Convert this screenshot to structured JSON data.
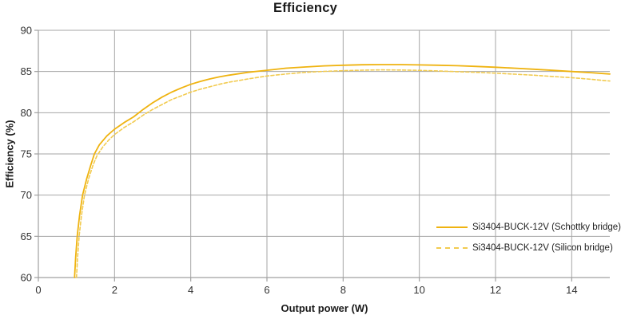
{
  "chart_data": {
    "type": "line",
    "title": "Efficiency",
    "xlabel": "Output power (W)",
    "ylabel": "Efficiency (%)",
    "xlim": [
      0,
      15
    ],
    "ylim": [
      60,
      90
    ],
    "xticks": [
      0,
      2,
      4,
      6,
      8,
      10,
      12,
      14
    ],
    "yticks": [
      60,
      65,
      70,
      75,
      80,
      85,
      90
    ],
    "grid": true,
    "legend_position": "inside-bottom-right",
    "colors": {
      "gridline": "#a6a6a6",
      "axis": "#a0a0a0",
      "tick_text": "#333333",
      "title_text": "#1a1a1a",
      "series_schottky": "#efb310",
      "series_silicon": "#f2cb50"
    },
    "series": [
      {
        "name": "Si3404-BUCK-12V (Schottky bridge)",
        "style": "solid",
        "color": "#efb310",
        "points": [
          [
            0.95,
            60
          ],
          [
            0.98,
            62.5
          ],
          [
            1.02,
            65
          ],
          [
            1.08,
            67.5
          ],
          [
            1.16,
            70
          ],
          [
            1.27,
            72
          ],
          [
            1.38,
            73.7
          ],
          [
            1.47,
            75
          ],
          [
            1.6,
            76.1
          ],
          [
            1.8,
            77.2
          ],
          [
            2.0,
            78.0
          ],
          [
            2.25,
            78.8
          ],
          [
            2.5,
            79.5
          ],
          [
            2.75,
            80.4
          ],
          [
            3.0,
            81.2
          ],
          [
            3.25,
            81.9
          ],
          [
            3.5,
            82.5
          ],
          [
            3.75,
            83.0
          ],
          [
            4.0,
            83.45
          ],
          [
            4.25,
            83.8
          ],
          [
            4.5,
            84.1
          ],
          [
            4.75,
            84.35
          ],
          [
            5.0,
            84.55
          ],
          [
            5.5,
            84.9
          ],
          [
            6.0,
            85.15
          ],
          [
            6.5,
            85.4
          ],
          [
            7.0,
            85.55
          ],
          [
            7.5,
            85.68
          ],
          [
            8.0,
            85.76
          ],
          [
            8.5,
            85.82
          ],
          [
            9.0,
            85.84
          ],
          [
            9.5,
            85.84
          ],
          [
            10.0,
            85.8
          ],
          [
            10.5,
            85.76
          ],
          [
            11.0,
            85.7
          ],
          [
            11.5,
            85.62
          ],
          [
            12.0,
            85.52
          ],
          [
            12.5,
            85.4
          ],
          [
            13.0,
            85.28
          ],
          [
            13.5,
            85.14
          ],
          [
            14.0,
            85.0
          ],
          [
            14.5,
            84.86
          ],
          [
            15.0,
            84.7
          ]
        ]
      },
      {
        "name": "Si3404-BUCK-12V (Silicon bridge)",
        "style": "dashed",
        "color": "#f2cb50",
        "points": [
          [
            1.0,
            60
          ],
          [
            1.03,
            62.5
          ],
          [
            1.07,
            65
          ],
          [
            1.13,
            67.5
          ],
          [
            1.21,
            70
          ],
          [
            1.32,
            72
          ],
          [
            1.44,
            73.7
          ],
          [
            1.54,
            74.8
          ],
          [
            1.7,
            75.9
          ],
          [
            1.85,
            76.7
          ],
          [
            2.0,
            77.35
          ],
          [
            2.25,
            78.2
          ],
          [
            2.5,
            78.9
          ],
          [
            2.75,
            79.7
          ],
          [
            3.0,
            80.4
          ],
          [
            3.25,
            81.0
          ],
          [
            3.5,
            81.6
          ],
          [
            3.75,
            82.05
          ],
          [
            4.0,
            82.5
          ],
          [
            4.25,
            82.85
          ],
          [
            4.5,
            83.15
          ],
          [
            4.75,
            83.45
          ],
          [
            5.0,
            83.7
          ],
          [
            5.5,
            84.1
          ],
          [
            6.0,
            84.45
          ],
          [
            6.5,
            84.7
          ],
          [
            7.0,
            84.9
          ],
          [
            7.5,
            85.02
          ],
          [
            8.0,
            85.1
          ],
          [
            8.5,
            85.16
          ],
          [
            9.0,
            85.2
          ],
          [
            9.5,
            85.18
          ],
          [
            10.0,
            85.14
          ],
          [
            10.5,
            85.06
          ],
          [
            11.0,
            84.98
          ],
          [
            11.5,
            84.9
          ],
          [
            12.0,
            84.8
          ],
          [
            12.5,
            84.68
          ],
          [
            13.0,
            84.55
          ],
          [
            13.5,
            84.4
          ],
          [
            14.0,
            84.25
          ],
          [
            14.5,
            84.06
          ],
          [
            15.0,
            83.85
          ]
        ]
      }
    ]
  }
}
